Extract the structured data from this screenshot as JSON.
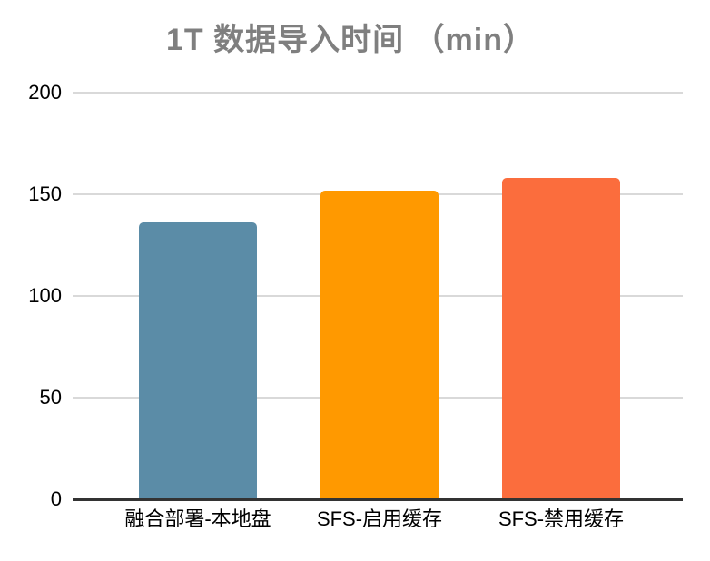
{
  "chart_data": {
    "type": "bar",
    "title": "1T 数据导入时间 （min）",
    "categories": [
      "融合部署-本地盘",
      "SFS-启用缓存",
      "SFS-禁用缓存"
    ],
    "values": [
      136,
      152,
      158
    ],
    "bar_colors": [
      "#5b8ca7",
      "#ff9900",
      "#fb6d3d"
    ],
    "xlabel": "",
    "ylabel": "",
    "ylim": [
      0,
      200
    ],
    "y_ticks": [
      0,
      50,
      100,
      150,
      200
    ],
    "grid": "horizontal",
    "legend_position": "none",
    "colors": {
      "title": "#7f7f7f",
      "gridline": "#d9d9d9",
      "axis_line": "#333333",
      "tick_label": "#000000",
      "background": "#ffffff"
    }
  }
}
